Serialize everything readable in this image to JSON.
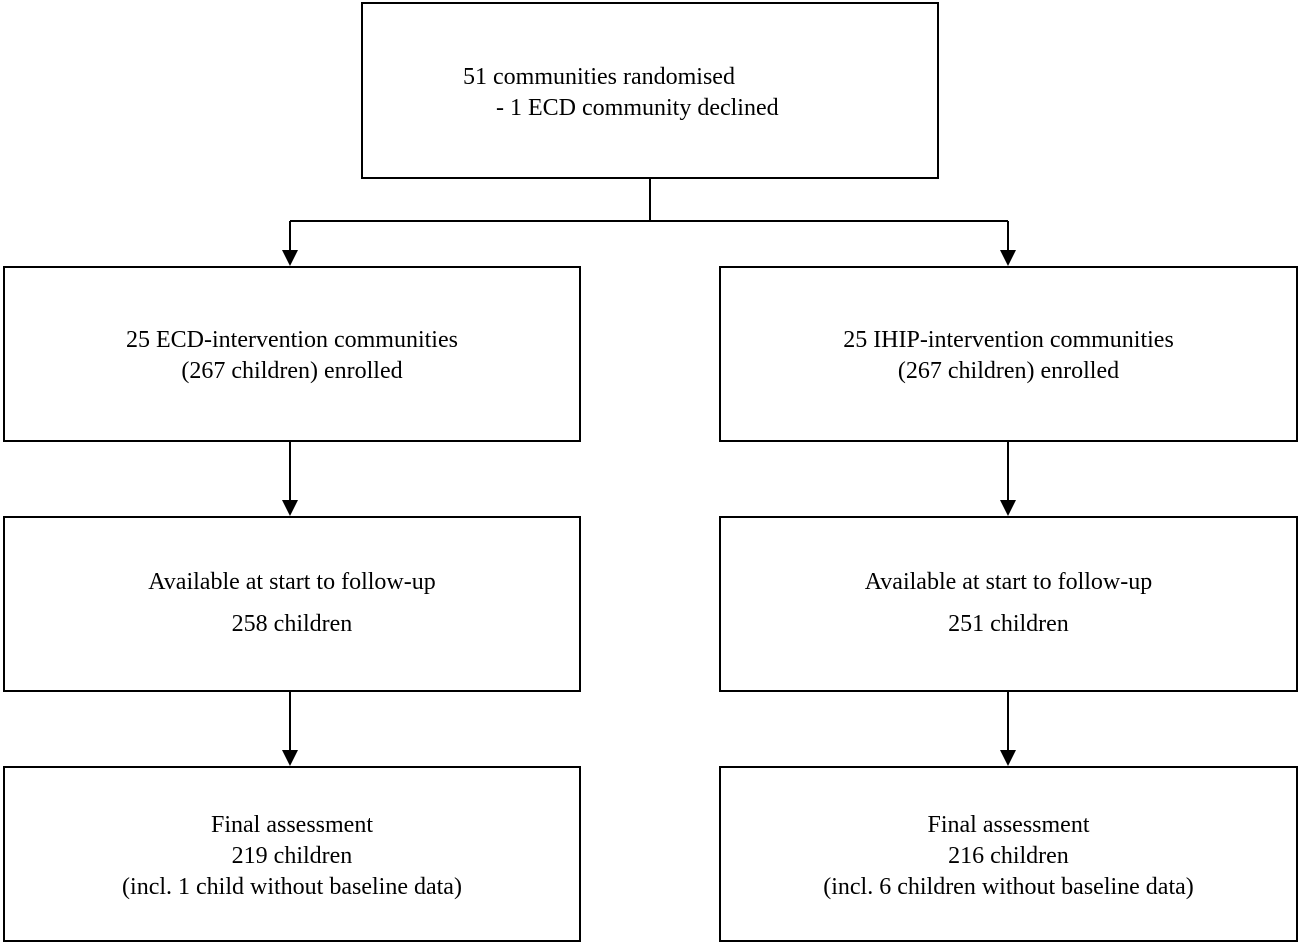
{
  "top": {
    "line1": "51 communities randomised",
    "line2": "- 1 ECD community declined"
  },
  "left": {
    "enrolled": {
      "line1": "25 ECD-intervention communities",
      "line2": "(267 children) enrolled"
    },
    "available": {
      "line1": "Available at start to follow-up",
      "line2": "258 children"
    },
    "final": {
      "line1": "Final assessment",
      "line2": "219 children",
      "line3": "(incl. 1 child without baseline data)"
    }
  },
  "right": {
    "enrolled": {
      "line1": "25 IHIP-intervention communities",
      "line2": "(267 children) enrolled"
    },
    "available": {
      "line1": "Available at start to follow-up",
      "line2": "251 children"
    },
    "final": {
      "line1": "Final assessment",
      "line2": "216 children",
      "line3": "(incl. 6 children without baseline data)"
    }
  }
}
